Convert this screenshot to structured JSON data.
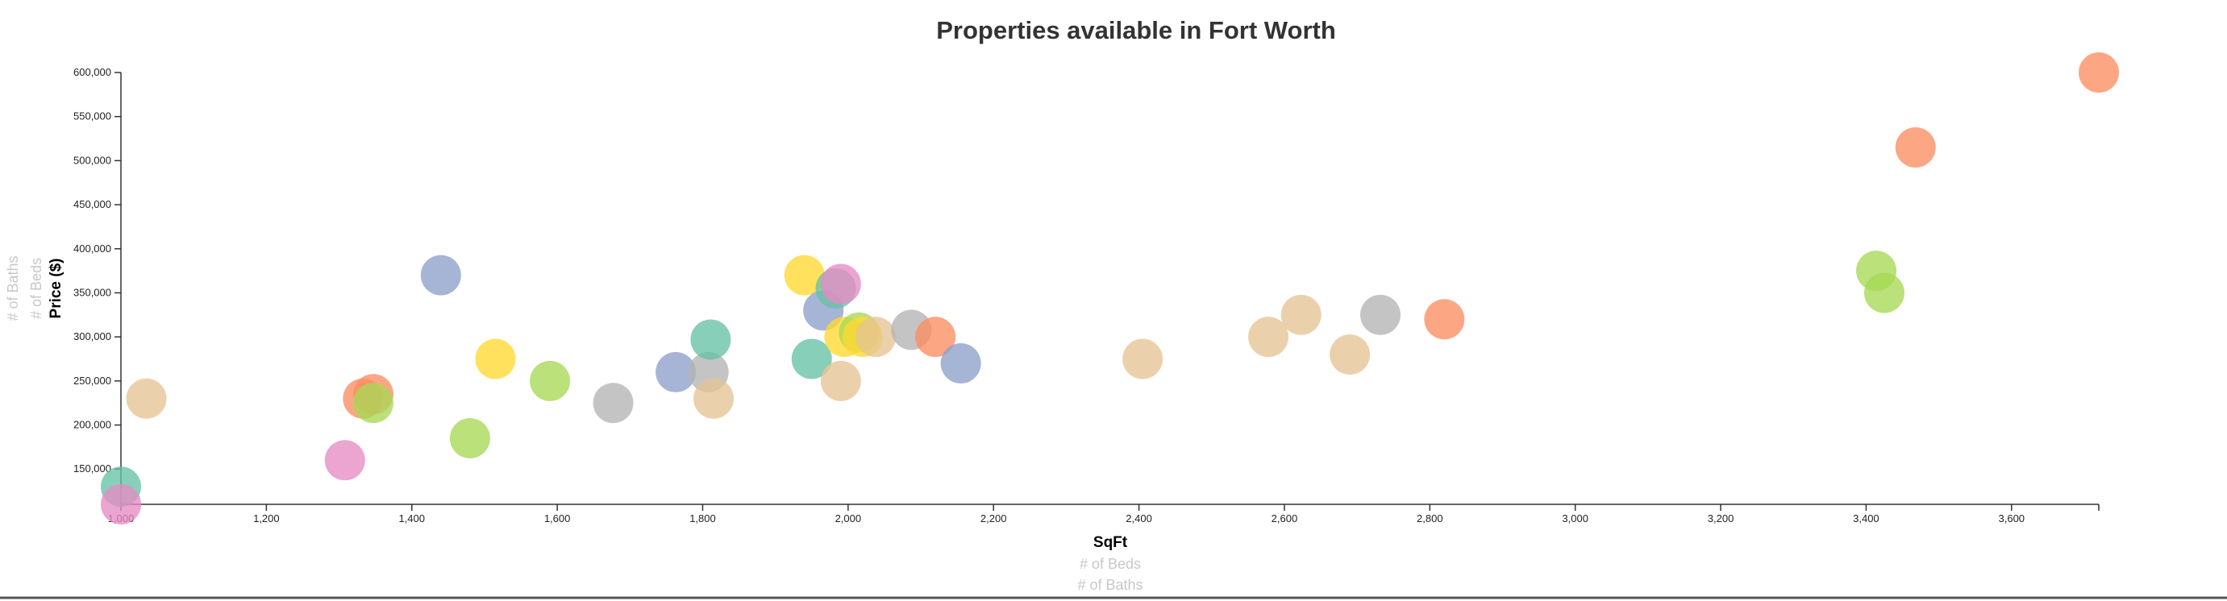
{
  "chart_data": {
    "type": "scatter",
    "title": "Properties available in Fort Worth",
    "xlabel": "SqFt",
    "ylabel": "Price ($)",
    "x_alt_labels": [
      "# of Beds",
      "# of Baths"
    ],
    "y_alt_labels": [
      "# of Beds",
      "# of Baths"
    ],
    "xlim": [
      1000,
      3720
    ],
    "ylim": [
      110000,
      600000
    ],
    "x_ticks": [
      {
        "value": 1000,
        "label": "1,000"
      },
      {
        "value": 1200,
        "label": "1,200"
      },
      {
        "value": 1400,
        "label": "1,400"
      },
      {
        "value": 1600,
        "label": "1,600"
      },
      {
        "value": 1800,
        "label": "1,800"
      },
      {
        "value": 2000,
        "label": "2,000"
      },
      {
        "value": 2200,
        "label": "2,200"
      },
      {
        "value": 2400,
        "label": "2,400"
      },
      {
        "value": 2600,
        "label": "2,600"
      },
      {
        "value": 2800,
        "label": "2,800"
      },
      {
        "value": 3000,
        "label": "3,000"
      },
      {
        "value": 3200,
        "label": "3,200"
      },
      {
        "value": 3400,
        "label": "3,400"
      },
      {
        "value": 3600,
        "label": "3,600"
      }
    ],
    "y_ticks": [
      {
        "value": 150000,
        "label": "150,000"
      },
      {
        "value": 200000,
        "label": "200,000"
      },
      {
        "value": 250000,
        "label": "250,000"
      },
      {
        "value": 300000,
        "label": "300,000"
      },
      {
        "value": 350000,
        "label": "350,000"
      },
      {
        "value": 400000,
        "label": "400,000"
      },
      {
        "value": 450000,
        "label": "450,000"
      },
      {
        "value": 500000,
        "label": "500,000"
      },
      {
        "value": 550000,
        "label": "550,000"
      },
      {
        "value": 600000,
        "label": "600,000"
      }
    ],
    "grid": false,
    "legend": "none",
    "palette": {
      "teal": "#66c2a5",
      "orange": "#fc8d62",
      "blue": "#8da0cb",
      "pink": "#e78ac3",
      "green": "#a6d854",
      "yellow": "#ffd92f",
      "tan": "#e5c494",
      "gray": "#b3b3b3"
    },
    "points": [
      {
        "x": 1000,
        "y": 130000,
        "color": "teal"
      },
      {
        "x": 1000,
        "y": 110000,
        "color": "pink"
      },
      {
        "x": 1035,
        "y": 230000,
        "color": "tan"
      },
      {
        "x": 1308,
        "y": 160000,
        "color": "pink"
      },
      {
        "x": 1333,
        "y": 230000,
        "color": "orange"
      },
      {
        "x": 1347,
        "y": 235000,
        "color": "orange"
      },
      {
        "x": 1347,
        "y": 225000,
        "color": "green"
      },
      {
        "x": 1440,
        "y": 370000,
        "color": "blue"
      },
      {
        "x": 1480,
        "y": 185000,
        "color": "green"
      },
      {
        "x": 1515,
        "y": 275000,
        "color": "yellow"
      },
      {
        "x": 1590,
        "y": 250000,
        "color": "green"
      },
      {
        "x": 1677,
        "y": 225000,
        "color": "gray"
      },
      {
        "x": 1763,
        "y": 260000,
        "color": "blue"
      },
      {
        "x": 1808,
        "y": 260000,
        "color": "gray"
      },
      {
        "x": 1811,
        "y": 297000,
        "color": "teal"
      },
      {
        "x": 1815,
        "y": 230000,
        "color": "tan"
      },
      {
        "x": 1940,
        "y": 370000,
        "color": "yellow"
      },
      {
        "x": 1950,
        "y": 275000,
        "color": "teal"
      },
      {
        "x": 1966,
        "y": 330000,
        "color": "blue"
      },
      {
        "x": 1983,
        "y": 355000,
        "color": "teal"
      },
      {
        "x": 1990,
        "y": 360000,
        "color": "pink"
      },
      {
        "x": 1990,
        "y": 250000,
        "color": "tan"
      },
      {
        "x": 1995,
        "y": 300000,
        "color": "yellow"
      },
      {
        "x": 2015,
        "y": 305000,
        "color": "green"
      },
      {
        "x": 2020,
        "y": 300000,
        "color": "yellow"
      },
      {
        "x": 2038,
        "y": 300000,
        "color": "tan"
      },
      {
        "x": 2087,
        "y": 308000,
        "color": "gray"
      },
      {
        "x": 2120,
        "y": 300000,
        "color": "orange"
      },
      {
        "x": 2155,
        "y": 270000,
        "color": "blue"
      },
      {
        "x": 2405,
        "y": 275000,
        "color": "tan"
      },
      {
        "x": 2578,
        "y": 300000,
        "color": "tan"
      },
      {
        "x": 2623,
        "y": 325000,
        "color": "tan"
      },
      {
        "x": 2690,
        "y": 280000,
        "color": "tan"
      },
      {
        "x": 2732,
        "y": 325000,
        "color": "gray"
      },
      {
        "x": 2820,
        "y": 320000,
        "color": "orange"
      },
      {
        "x": 3414,
        "y": 375000,
        "color": "green"
      },
      {
        "x": 3425,
        "y": 350000,
        "color": "green"
      },
      {
        "x": 3468,
        "y": 515000,
        "color": "orange"
      },
      {
        "x": 3720,
        "y": 600000,
        "color": "orange"
      }
    ]
  }
}
